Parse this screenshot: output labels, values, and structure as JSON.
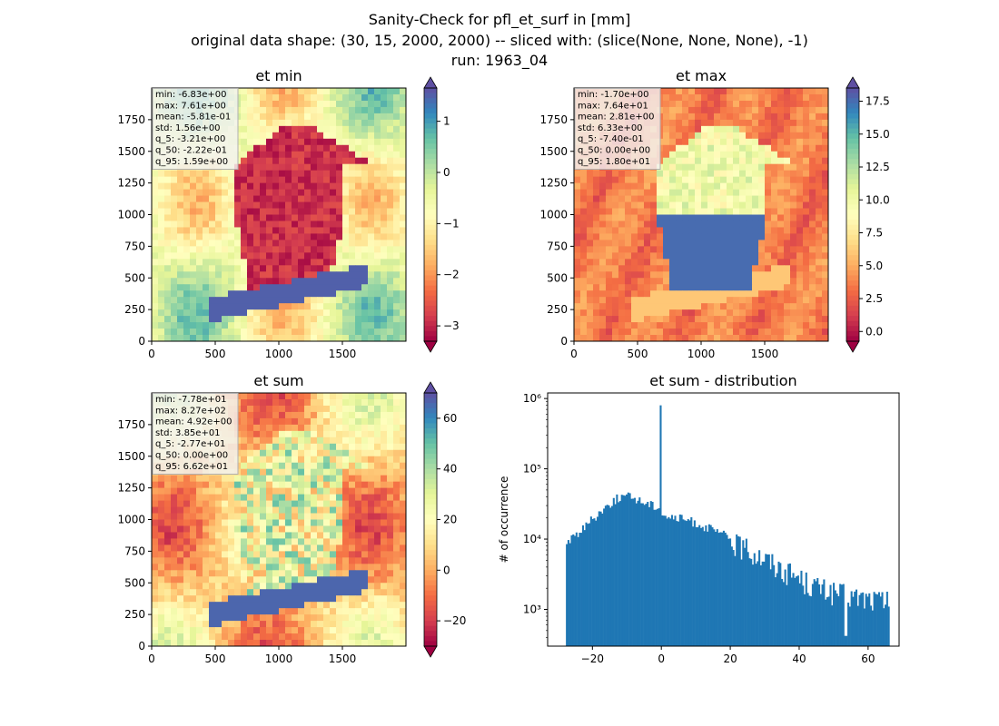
{
  "suptitle": {
    "line1": "Sanity-Check for pfl_et_surf in [mm]",
    "line2": "original data shape: (30, 15, 2000, 2000) -- sliced with: (slice(None, None, None), -1)",
    "line3": "run: 1963_04"
  },
  "colors": {
    "spectral": [
      "#9e0142",
      "#d53e4f",
      "#f46d43",
      "#fdae61",
      "#fee08b",
      "#ffffbf",
      "#e6f598",
      "#abdda4",
      "#66c2a5",
      "#3288bd",
      "#5e4fa2"
    ],
    "hist_bar": "#1f77b4",
    "stats_box_bg": "#f2f2f2",
    "stats_box_border": "#b0b0b0"
  },
  "chart_data": [
    {
      "type": "heatmap",
      "title": "et min",
      "colormap": "Spectral",
      "x_ticks": [
        "0",
        "500",
        "1000",
        "1500"
      ],
      "y_ticks": [
        "0",
        "250",
        "500",
        "750",
        "1000",
        "1250",
        "1500",
        "1750"
      ],
      "xlim": [
        0,
        2000
      ],
      "ylim": [
        0,
        2000
      ],
      "colorbar": {
        "range": [
          -3.3,
          1.65
        ],
        "ticks": [
          "1",
          "0",
          "−1",
          "−2",
          "−3"
        ],
        "tick_values": [
          1,
          0,
          -1,
          -2,
          -3
        ],
        "extend": "both"
      },
      "stats": [
        "min: -6.83e+00",
        "max: 7.61e+00",
        "mean: -5.81e-01",
        "std: 1.56e+00",
        "q_5: -3.21e+00",
        "q_50: -2.22e-01",
        "q_95: 1.59e+00"
      ]
    },
    {
      "type": "heatmap",
      "title": "et max",
      "colormap": "Spectral",
      "x_ticks": [
        "0",
        "500",
        "1000",
        "1500"
      ],
      "y_ticks": [
        "0",
        "250",
        "500",
        "750",
        "1000",
        "1250",
        "1500",
        "1750"
      ],
      "xlim": [
        0,
        2000
      ],
      "ylim": [
        0,
        2000
      ],
      "colorbar": {
        "range": [
          -0.74,
          18.5
        ],
        "ticks": [
          "17.5",
          "15.0",
          "12.5",
          "10.0",
          "7.5",
          "5.0",
          "2.5",
          "0.0"
        ],
        "tick_values": [
          17.5,
          15,
          12.5,
          10,
          7.5,
          5,
          2.5,
          0
        ],
        "extend": "both"
      },
      "stats": [
        "min: -1.70e+00",
        "max: 7.64e+01",
        "mean: 2.81e+00",
        "std: 6.33e+00",
        "q_5: -7.40e-01",
        "q_50: 0.00e+00",
        "q_95: 1.80e+01"
      ]
    },
    {
      "type": "heatmap",
      "title": "et sum",
      "colormap": "Spectral",
      "x_ticks": [
        "0",
        "500",
        "1000",
        "1500"
      ],
      "y_ticks": [
        "0",
        "250",
        "500",
        "750",
        "1000",
        "1250",
        "1500",
        "1750"
      ],
      "xlim": [
        0,
        2000
      ],
      "ylim": [
        0,
        2000
      ],
      "colorbar": {
        "range": [
          -30,
          70
        ],
        "ticks": [
          "60",
          "40",
          "20",
          "0",
          "−20"
        ],
        "tick_values": [
          60,
          40,
          20,
          0,
          -20
        ],
        "extend": "both"
      },
      "stats": [
        "min: -7.78e+01",
        "max: 8.27e+02",
        "mean: 4.92e+00",
        "std: 3.85e+01",
        "q_5: -2.77e+01",
        "q_50: 0.00e+00",
        "q_95: 6.62e+01"
      ]
    },
    {
      "type": "bar",
      "title": "et sum - distribution",
      "ylabel": "# of occurrence",
      "xlabel": "",
      "log_y": true,
      "xlim": [
        -33,
        69
      ],
      "ylim": [
        300,
        1200000
      ],
      "x_ticks": [
        "−20",
        "0",
        "20",
        "40",
        "60"
      ],
      "x_tick_values": [
        -20,
        0,
        20,
        40,
        60
      ],
      "y_ticks": [
        "10³",
        "10⁴",
        "10⁵",
        "10⁶"
      ],
      "y_tick_values": [
        1000,
        10000,
        100000,
        1000000
      ],
      "bins": {
        "start": -27.7,
        "end": 66.2,
        "count": 200
      },
      "profile": [
        [
          -27.7,
          9000
        ],
        [
          -26,
          10500
        ],
        [
          -24,
          13000
        ],
        [
          -22,
          16000
        ],
        [
          -20,
          20000
        ],
        [
          -18,
          25000
        ],
        [
          -16,
          30000
        ],
        [
          -14,
          36000
        ],
        [
          -12,
          41000
        ],
        [
          -10,
          42000
        ],
        [
          -8,
          40000
        ],
        [
          -6,
          36000
        ],
        [
          -4,
          33000
        ],
        [
          -2,
          31000
        ],
        [
          -0.5,
          30000
        ],
        [
          0,
          25000
        ],
        [
          2,
          21000
        ],
        [
          4,
          20500
        ],
        [
          6,
          20000
        ],
        [
          8,
          19000
        ],
        [
          10,
          17500
        ],
        [
          12,
          16000
        ],
        [
          14,
          14500
        ],
        [
          16,
          13000
        ],
        [
          18,
          12000
        ],
        [
          20,
          10500
        ],
        [
          22,
          9500
        ],
        [
          24,
          8500
        ],
        [
          26,
          7500
        ],
        [
          28,
          6800
        ],
        [
          30,
          6000
        ],
        [
          32,
          5300
        ],
        [
          34,
          4600
        ],
        [
          36,
          4100
        ],
        [
          38,
          3600
        ],
        [
          40,
          3200
        ],
        [
          42,
          2800
        ],
        [
          44,
          2500
        ],
        [
          46,
          2300
        ],
        [
          48,
          2100
        ],
        [
          50,
          2000
        ],
        [
          52,
          1900
        ],
        [
          54,
          1800
        ],
        [
          56,
          1700
        ],
        [
          58,
          1650
        ],
        [
          60,
          1600
        ],
        [
          62,
          1550
        ],
        [
          64,
          1500
        ],
        [
          66.2,
          1400
        ]
      ],
      "spikes": [
        {
          "x": -0.2,
          "value": 800000
        }
      ]
    }
  ]
}
